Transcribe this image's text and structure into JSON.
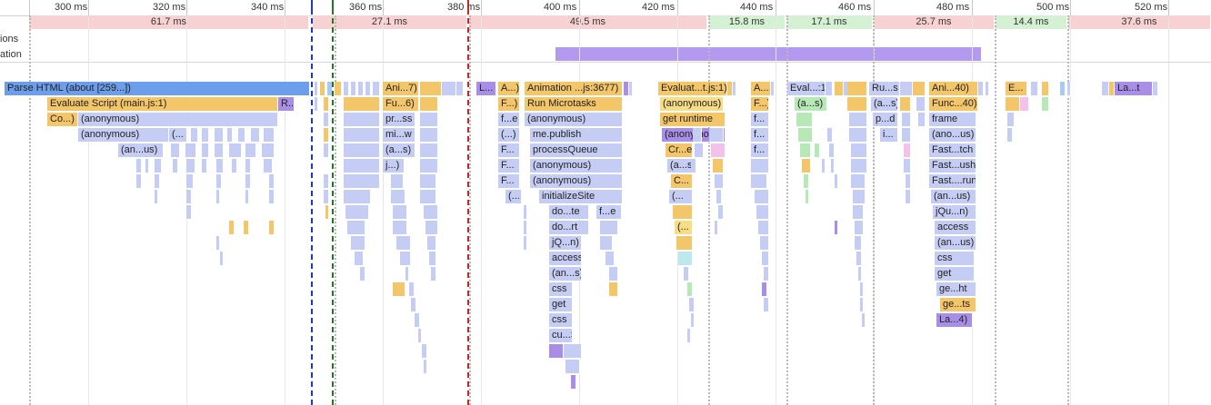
{
  "timeline": {
    "ticks": [
      "300 ms",
      "320 ms",
      "340 ms",
      "360 ms",
      "380 ms",
      "400 ms",
      "420 ms",
      "440 ms",
      "460 ms",
      "480 ms",
      "500 ms",
      "520 ms"
    ]
  },
  "tracks": {
    "interactions_label": "ions",
    "animation_label": "ation"
  },
  "frames": [
    {
      "label": "61.7 ms",
      "status": "dropped"
    },
    {
      "label": "27.1 ms",
      "status": "dropped"
    },
    {
      "label": "49.5 ms",
      "status": "dropped"
    },
    {
      "label": "15.8 ms",
      "status": "ok"
    },
    {
      "label": "17.1 ms",
      "status": "ok"
    },
    {
      "label": "25.7 ms",
      "status": "dropped"
    },
    {
      "label": "14.4 ms",
      "status": "ok"
    },
    {
      "label": "37.6 ms",
      "status": "dropped"
    }
  ],
  "colors": {
    "dropped_frame": "#f8d2d2",
    "ok_frame": "#d4f1d4",
    "parse_html": "#6d9eeb",
    "script": "#f4c66a",
    "js_function": "#c6cdf4",
    "rendering": "#a98ee8",
    "animation_bar": "#b39af0",
    "painting": "#b6e9b6",
    "dcl_marker": "#1a39c7",
    "fcp_marker": "#1e7a1e",
    "load_marker": "#c62828"
  },
  "flame": {
    "parse_html": "Parse HTML (about [259...])",
    "evaluate_script": "Evaluate Script (main.js:1)",
    "r_short": "R...",
    "co_short": "Co...)",
    "anonymous": "(anonymous)",
    "anonymous_trunc": "(...",
    "an_us": "(an...us)",
    "ani_7": "Ani...7)",
    "fu_6": "Fu...6)",
    "pr_ss": "pr...ss",
    "mi_w": "mi...w",
    "a_s": "(a...s)",
    "j_short": "j...)",
    "l_short": "L...",
    "a_short": "A...)",
    "f_short": "F...)",
    "f_e": "f...e",
    "paren_dots": "(...)",
    "f_dots": "F...",
    "paren_dots2": "(...",
    "animation_frame": "Animation ...js:3677)",
    "run_microtasks": "Run Microtasks",
    "me_publish": "me.publish",
    "process_queue": "processQueue",
    "initialize_site": "initializeSite",
    "do_te": "do...te",
    "f_e2": "f...e",
    "do_rt": "do...rt",
    "jq_n": "jQ...n)",
    "access": "access",
    "an_s": "(an...s)",
    "css": "css",
    "get": "get",
    "cu_s": "cu...S",
    "evaluat": "Evaluat...t.js:1)",
    "get_runtime": "get runtime",
    "cr_e": "Cr...e",
    "c_dots": "C...",
    "a_dots": "A...",
    "f_dots2": "F...)",
    "f_dots3": "f...",
    "eval_1": "Eval...:1)",
    "a_s2": "(a...s)",
    "ru_s": "Ru...s",
    "p_d": "p...d",
    "i_dots": "i...",
    "ani_40": "Ani...40)",
    "func_40": "Func...40)",
    "frame": "frame",
    "ano_us": "(ano...us)",
    "fast_tch": "Fast...tch",
    "fast_ush": "Fast...ush",
    "fast_run": "Fast....run",
    "jquery_n": "jQu...n)",
    "ge_ht": "ge...ht",
    "ge_ts": "ge...ts",
    "la_4": "La...4)",
    "e_dots": "E...",
    "la_t": "La...t"
  }
}
